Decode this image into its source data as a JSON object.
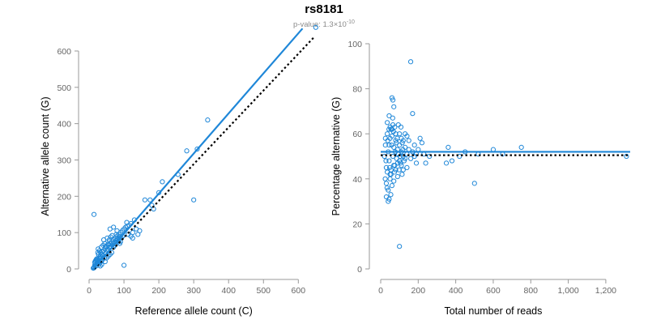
{
  "title": "rs8181",
  "subtitle": {
    "prefix": "p-value: 1.3×10",
    "exponent": "-10"
  },
  "colors": {
    "points": "#1f87d8",
    "fit_line": "#1f87d8",
    "reference_line": "#000000",
    "axis": "#999999",
    "tick_text": "#666666"
  },
  "chart_data": [
    {
      "type": "scatter",
      "name_hint": "allele-count",
      "xlabel": "Reference allele count (C)",
      "ylabel": "Alternative allele count (G)",
      "xlim": [
        0,
        655
      ],
      "ylim": [
        0,
        620
      ],
      "xticks": [
        0,
        100,
        200,
        300,
        400,
        500,
        600
      ],
      "yticks": [
        0,
        100,
        200,
        300,
        400,
        500,
        600
      ],
      "xtick_labels": [
        "0",
        "100",
        "200",
        "300",
        "400",
        "500",
        "600"
      ],
      "ytick_labels": [
        "0",
        "100",
        "200",
        "300",
        "400",
        "500",
        "600"
      ],
      "fit_line": {
        "x": [
          12,
          612
        ],
        "y": [
          0,
          662
        ]
      },
      "reference_line": {
        "x": [
          15,
          645
        ],
        "y": [
          0,
          638
        ]
      },
      "points": [
        [
          15,
          5
        ],
        [
          18,
          12
        ],
        [
          20,
          8
        ],
        [
          22,
          15
        ],
        [
          25,
          18
        ],
        [
          14,
          3
        ],
        [
          12,
          2
        ],
        [
          16,
          10
        ],
        [
          19,
          20
        ],
        [
          23,
          25
        ],
        [
          26,
          22
        ],
        [
          28,
          30
        ],
        [
          30,
          28
        ],
        [
          32,
          35
        ],
        [
          35,
          32
        ],
        [
          20,
          25
        ],
        [
          24,
          15
        ],
        [
          27,
          40
        ],
        [
          30,
          18
        ],
        [
          33,
          45
        ],
        [
          36,
          40
        ],
        [
          38,
          48
        ],
        [
          40,
          35
        ],
        [
          42,
          50
        ],
        [
          45,
          55
        ],
        [
          48,
          45
        ],
        [
          50,
          60
        ],
        [
          52,
          52
        ],
        [
          55,
          65
        ],
        [
          58,
          58
        ],
        [
          60,
          70
        ],
        [
          62,
          62
        ],
        [
          65,
          75
        ],
        [
          68,
          68
        ],
        [
          70,
          80
        ],
        [
          72,
          72
        ],
        [
          75,
          85
        ],
        [
          78,
          78
        ],
        [
          80,
          90
        ],
        [
          82,
          82
        ],
        [
          85,
          95
        ],
        [
          88,
          88
        ],
        [
          90,
          100
        ],
        [
          95,
          105
        ],
        [
          100,
          110
        ],
        [
          105,
          115
        ],
        [
          110,
          118
        ],
        [
          115,
          120
        ],
        [
          120,
          125
        ],
        [
          125,
          100
        ],
        [
          130,
          135
        ],
        [
          25,
          45
        ],
        [
          30,
          50
        ],
        [
          35,
          60
        ],
        [
          40,
          65
        ],
        [
          45,
          70
        ],
        [
          50,
          30
        ],
        [
          55,
          35
        ],
        [
          60,
          40
        ],
        [
          65,
          45
        ],
        [
          18,
          22
        ],
        [
          22,
          28
        ],
        [
          16,
          18
        ],
        [
          28,
          12
        ],
        [
          34,
          20
        ],
        [
          38,
          25
        ],
        [
          44,
          30
        ],
        [
          48,
          62
        ],
        [
          54,
          68
        ],
        [
          58,
          80
        ],
        [
          62,
          88
        ],
        [
          66,
          92
        ],
        [
          70,
          60
        ],
        [
          74,
          65
        ],
        [
          78,
          95
        ],
        [
          84,
          75
        ],
        [
          88,
          70
        ],
        [
          92,
          85
        ],
        [
          96,
          90
        ],
        [
          14,
          150
        ],
        [
          100,
          10
        ],
        [
          140,
          95
        ],
        [
          160,
          190
        ],
        [
          175,
          190
        ],
        [
          180,
          175
        ],
        [
          185,
          165
        ],
        [
          200,
          210
        ],
        [
          210,
          240
        ],
        [
          255,
          260
        ],
        [
          280,
          325
        ],
        [
          300,
          190
        ],
        [
          310,
          330
        ],
        [
          340,
          410
        ],
        [
          650,
          665
        ],
        [
          120,
          90
        ],
        [
          135,
          110
        ],
        [
          145,
          105
        ],
        [
          108,
          128
        ],
        [
          112,
          95
        ],
        [
          125,
          85
        ],
        [
          60,
          110
        ],
        [
          70,
          115
        ],
        [
          80,
          105
        ],
        [
          90,
          75
        ],
        [
          42,
          80
        ],
        [
          26,
          55
        ],
        [
          32,
          8
        ],
        [
          36,
          12
        ],
        [
          46,
          20
        ],
        [
          52,
          85
        ]
      ]
    },
    {
      "type": "scatter",
      "name_hint": "percentage",
      "xlabel": "Total number of reads",
      "ylabel": "Percentage alternative (G)",
      "xlim": [
        0,
        1330
      ],
      "ylim": [
        0,
        100
      ],
      "xticks": [
        0,
        200,
        400,
        600,
        800,
        1000,
        1200
      ],
      "yticks": [
        0,
        20,
        40,
        60,
        80,
        100
      ],
      "xtick_labels": [
        "0",
        "200",
        "400",
        "600",
        "800",
        "1,000",
        "1,200"
      ],
      "ytick_labels": [
        "0",
        "20",
        "40",
        "60",
        "80",
        "100"
      ],
      "fit_line": {
        "x": [
          0,
          1330
        ],
        "y": [
          52,
          52
        ]
      },
      "reference_line": {
        "x": [
          0,
          1330
        ],
        "y": [
          50.5,
          50.5
        ]
      },
      "points": [
        [
          20,
          50
        ],
        [
          25,
          55
        ],
        [
          30,
          45
        ],
        [
          35,
          60
        ],
        [
          40,
          52
        ],
        [
          45,
          48
        ],
        [
          50,
          58
        ],
        [
          55,
          42
        ],
        [
          60,
          62
        ],
        [
          65,
          50
        ],
        [
          70,
          54
        ],
        [
          75,
          46
        ],
        [
          80,
          57
        ],
        [
          85,
          49
        ],
        [
          90,
          53
        ],
        [
          95,
          51
        ],
        [
          100,
          55
        ],
        [
          105,
          47
        ],
        [
          110,
          52
        ],
        [
          115,
          56
        ],
        [
          120,
          50
        ],
        [
          125,
          48
        ],
        [
          130,
          54
        ],
        [
          140,
          51
        ],
        [
          150,
          53
        ],
        [
          160,
          49
        ],
        [
          170,
          52
        ],
        [
          180,
          50
        ],
        [
          190,
          51
        ],
        [
          200,
          53
        ],
        [
          30,
          38
        ],
        [
          35,
          65
        ],
        [
          40,
          35
        ],
        [
          45,
          68
        ],
        [
          50,
          40
        ],
        [
          55,
          62
        ],
        [
          60,
          37
        ],
        [
          65,
          64
        ],
        [
          70,
          39
        ],
        [
          75,
          63
        ],
        [
          30,
          32
        ],
        [
          40,
          30
        ],
        [
          45,
          31
        ],
        [
          50,
          42
        ],
        [
          55,
          44
        ],
        [
          60,
          76
        ],
        [
          65,
          75
        ],
        [
          70,
          72
        ],
        [
          80,
          44
        ],
        [
          90,
          41
        ],
        [
          100,
          60
        ],
        [
          110,
          58
        ],
        [
          120,
          44
        ],
        [
          130,
          60
        ],
        [
          140,
          45
        ],
        [
          150,
          57
        ],
        [
          160,
          92
        ],
        [
          170,
          69
        ],
        [
          180,
          55
        ],
        [
          190,
          47
        ],
        [
          100,
          10
        ],
        [
          210,
          58
        ],
        [
          220,
          56
        ],
        [
          230,
          51
        ],
        [
          240,
          47
        ],
        [
          260,
          50
        ],
        [
          350,
          47
        ],
        [
          360,
          54
        ],
        [
          380,
          48
        ],
        [
          420,
          50
        ],
        [
          450,
          52
        ],
        [
          500,
          38
        ],
        [
          520,
          51
        ],
        [
          600,
          53
        ],
        [
          650,
          51
        ],
        [
          750,
          54
        ],
        [
          1310,
          50
        ],
        [
          25,
          58
        ],
        [
          35,
          43
        ],
        [
          45,
          55
        ],
        [
          50,
          63
        ],
        [
          60,
          59
        ],
        [
          70,
          46
        ],
        [
          80,
          60
        ],
        [
          90,
          47
        ],
        [
          100,
          48
        ],
        [
          110,
          46
        ],
        [
          120,
          57
        ],
        [
          130,
          49
        ],
        [
          140,
          59
        ],
        [
          28,
          48
        ],
        [
          38,
          57
        ],
        [
          48,
          45
        ],
        [
          58,
          55
        ],
        [
          68,
          61
        ],
        [
          78,
          52
        ],
        [
          88,
          58
        ],
        [
          98,
          44
        ],
        [
          108,
          63
        ],
        [
          118,
          53
        ],
        [
          24,
          40
        ],
        [
          34,
          36
        ],
        [
          44,
          62
        ],
        [
          54,
          33
        ],
        [
          64,
          67
        ],
        [
          74,
          43
        ],
        [
          84,
          56
        ],
        [
          94,
          64
        ],
        [
          104,
          50
        ],
        [
          114,
          42
        ]
      ]
    }
  ]
}
